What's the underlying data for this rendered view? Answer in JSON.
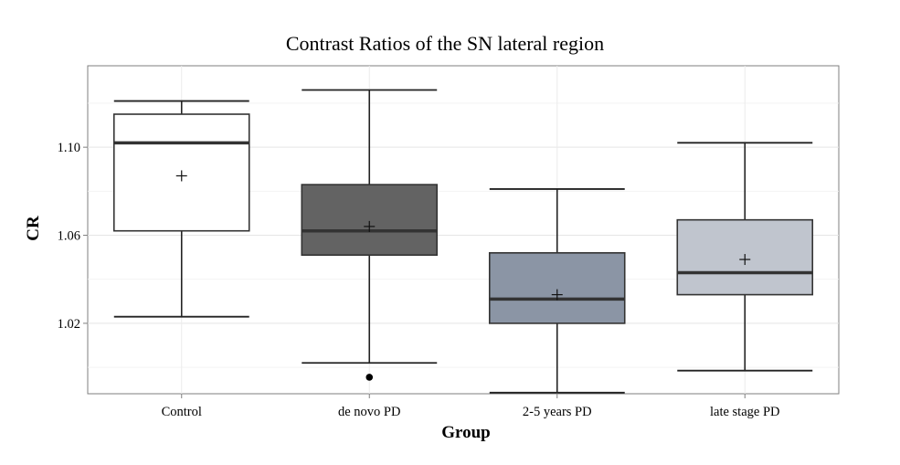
{
  "chart_data": {
    "type": "boxplot",
    "title": "Contrast Ratios of the SN lateral region",
    "xlabel": "Group",
    "ylabel": "CR",
    "ylim": [
      0.988,
      1.137
    ],
    "yticks": [
      1.02,
      1.06,
      1.1
    ],
    "ytick_labels": [
      "1.02",
      "1.06",
      "1.10"
    ],
    "grid": true,
    "categories": [
      "Control",
      "de novo PD",
      "2-5 years PD",
      "late stage PD"
    ],
    "boxes": [
      {
        "whisker_low": 1.023,
        "q1": 1.062,
        "median": 1.102,
        "q3": 1.115,
        "whisker_high": 1.121,
        "mean": 1.087,
        "outliers": [],
        "fill": "#ffffff"
      },
      {
        "whisker_low": 1.002,
        "q1": 1.051,
        "median": 1.062,
        "q3": 1.083,
        "whisker_high": 1.126,
        "mean": 1.064,
        "outliers": [
          0.9955
        ],
        "fill": "#636363"
      },
      {
        "whisker_low": 0.9885,
        "q1": 1.02,
        "median": 1.031,
        "q3": 1.052,
        "whisker_high": 1.081,
        "mean": 1.033,
        "outliers": [],
        "fill": "#8b95a5"
      },
      {
        "whisker_low": 0.9985,
        "q1": 1.033,
        "median": 1.043,
        "q3": 1.067,
        "whisker_high": 1.102,
        "mean": 1.049,
        "outliers": [],
        "fill": "#c0c5ce"
      }
    ]
  }
}
